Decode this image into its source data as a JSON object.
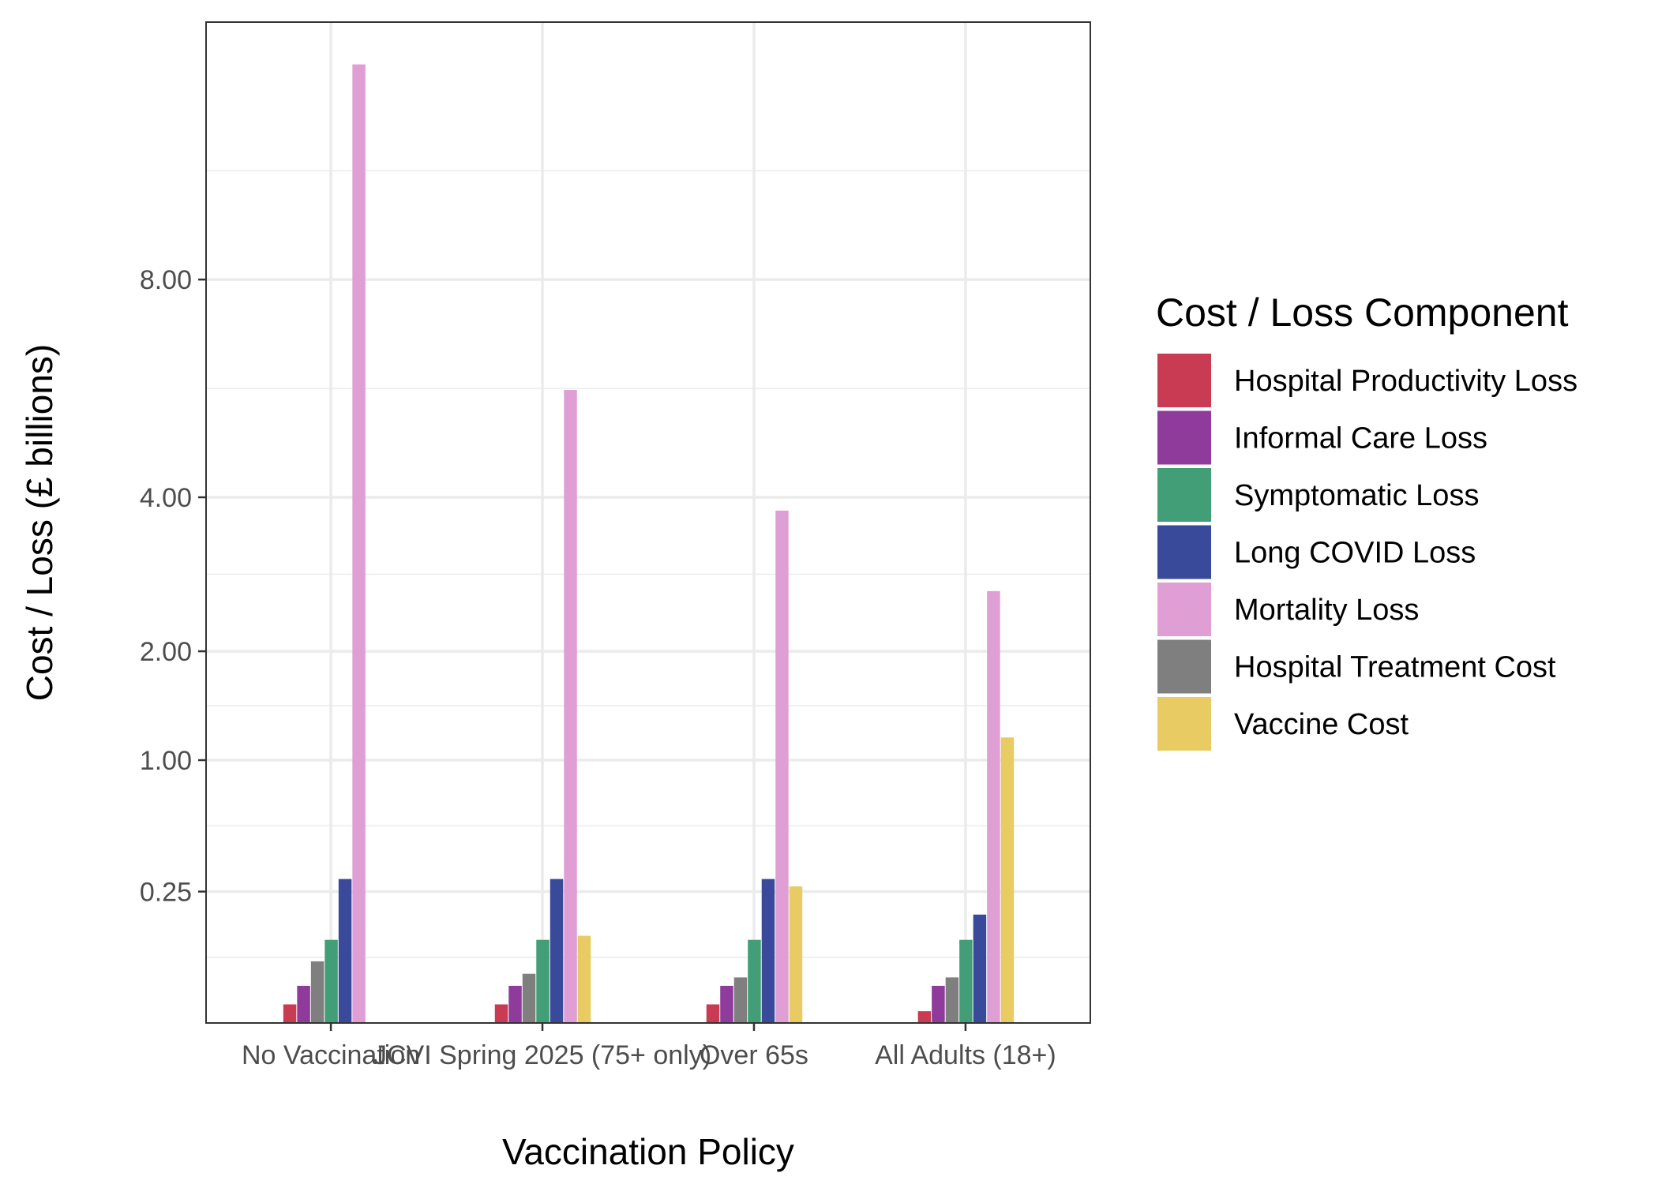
{
  "chart_data": {
    "type": "bar",
    "xlabel": "Vaccination Policy",
    "ylabel": "Cost / Loss (£ billions)",
    "y_scale": "sqrt",
    "ylim": [
      0,
      14.5
    ],
    "yticks": [
      0.25,
      1.0,
      2.0,
      4.0,
      8.0
    ],
    "ytick_labels": [
      "0.25",
      "1.00",
      "2.00",
      "4.00",
      "8.00"
    ],
    "grid": true,
    "legend_position": "right",
    "legend_title": "Cost / Loss Component",
    "categories": [
      "No Vaccination",
      "JCVI Spring 2025 (75+ only)",
      "Over 65s",
      "All Adults (18+)"
    ],
    "series": [
      {
        "name": "Hospital Productivity Loss",
        "color": "#C93B53",
        "values": [
          0.005,
          0.005,
          0.005,
          0.002
        ]
      },
      {
        "name": "Informal Care Loss",
        "color": "#8E3B9B",
        "values": [
          0.02,
          0.02,
          0.02,
          0.02
        ]
      },
      {
        "name": "Symptomatic Loss",
        "color": "#429E77",
        "values": [
          0.1,
          0.1,
          0.1,
          0.1
        ]
      },
      {
        "name": "Long COVID Loss",
        "color": "#3A4A9A",
        "values": [
          0.3,
          0.3,
          0.3,
          0.17
        ]
      },
      {
        "name": "Mortality Loss",
        "color": "#DF9FD5",
        "values": [
          13.3,
          5.8,
          3.8,
          2.7
        ]
      },
      {
        "name": "Hospital Treatment Cost",
        "color": "#7F7F7F",
        "values": [
          0.055,
          0.035,
          0.03,
          0.03
        ]
      },
      {
        "name": "Vaccine Cost",
        "color": "#E8CB62",
        "values": [
          0,
          0.11,
          0.27,
          1.18
        ]
      }
    ]
  }
}
